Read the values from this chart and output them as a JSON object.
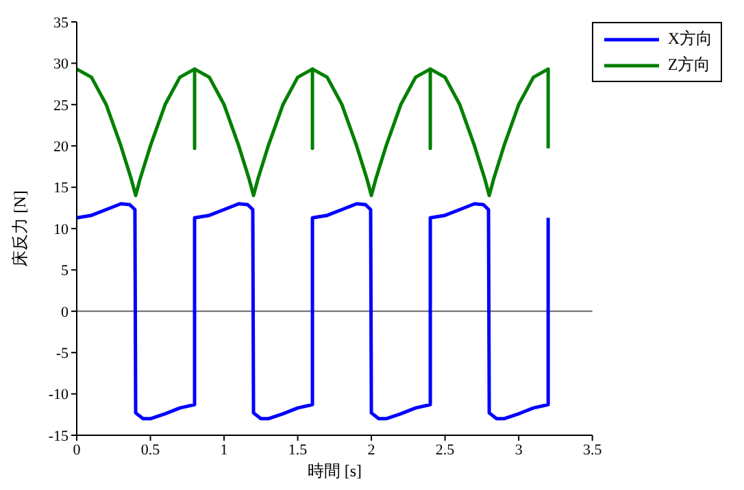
{
  "chart_data": {
    "type": "line",
    "xlabel": "時間 [s]",
    "ylabel": "床反力 [N]",
    "xlim": [
      0,
      3.5
    ],
    "xticks": [
      0,
      0.5,
      1,
      1.5,
      2,
      2.5,
      3,
      3.5
    ],
    "ylim": [
      -15,
      35
    ],
    "yticks": [
      -15,
      -10,
      -5,
      0,
      5,
      10,
      15,
      20,
      25,
      30,
      35
    ],
    "grid": false,
    "legend": "top right",
    "marker": "none",
    "line_style": "solid",
    "ref_lines": [
      {
        "axis": "y",
        "value": 0,
        "color": "#808080"
      }
    ],
    "series": [
      {
        "name": "X方向",
        "color": "#0000ff",
        "x": [
          0,
          0.1,
          0.2,
          0.3,
          0.36,
          0.395,
          0.4,
          0.45,
          0.5,
          0.6,
          0.7,
          0.8,
          0.8,
          0.9,
          1,
          1.1,
          1.16,
          1.195,
          1.2,
          1.25,
          1.3,
          1.4,
          1.5,
          1.6,
          1.6,
          1.7,
          1.8,
          1.9,
          1.96,
          1.995,
          2,
          2.05,
          2.1,
          2.2,
          2.3,
          2.4,
          2.4,
          2.5,
          2.6,
          2.7,
          2.76,
          2.795,
          2.8,
          2.85,
          2.9,
          3,
          3.1,
          3.2,
          3.2
        ],
        "values": [
          11.3,
          11.6,
          12.3,
          13,
          12.9,
          12.3,
          -12.3,
          -13,
          -13,
          -12.4,
          -11.7,
          -11.3,
          11.3,
          11.6,
          12.3,
          13,
          12.9,
          12.3,
          -12.3,
          -13,
          -13,
          -12.4,
          -11.7,
          -11.3,
          11.3,
          11.6,
          12.3,
          13,
          12.9,
          12.3,
          -12.3,
          -13,
          -13,
          -12.4,
          -11.7,
          -11.3,
          11.3,
          11.6,
          12.3,
          13,
          12.9,
          12.3,
          -12.3,
          -13,
          -13,
          -12.4,
          -11.7,
          -11.3,
          11.3
        ]
      },
      {
        "name": "Z方向",
        "color": "#008000",
        "x": [
          0,
          0.1,
          0.2,
          0.3,
          0.37,
          0.4,
          0.43,
          0.5,
          0.6,
          0.7,
          0.8,
          0.8,
          0.8,
          0.9,
          1,
          1.1,
          1.17,
          1.2,
          1.23,
          1.3,
          1.4,
          1.5,
          1.6,
          1.6,
          1.6,
          1.7,
          1.8,
          1.9,
          1.97,
          2,
          2.03,
          2.1,
          2.2,
          2.3,
          2.4,
          2.4,
          2.4,
          2.5,
          2.6,
          2.7,
          2.77,
          2.8,
          2.83,
          2.9,
          3,
          3.1,
          3.2,
          3.2
        ],
        "values": [
          29.3,
          28.3,
          25,
          20,
          16,
          14,
          16,
          20,
          25,
          28.3,
          29.3,
          19.7,
          29.3,
          28.3,
          25,
          20,
          16,
          14,
          16,
          20,
          25,
          28.3,
          29.3,
          19.7,
          29.3,
          28.3,
          25,
          20,
          16,
          14,
          16,
          20,
          25,
          28.3,
          29.3,
          19.7,
          29.3,
          28.3,
          25,
          20,
          16,
          14,
          16,
          20,
          25,
          28.3,
          29.3,
          19.7
        ]
      }
    ]
  }
}
